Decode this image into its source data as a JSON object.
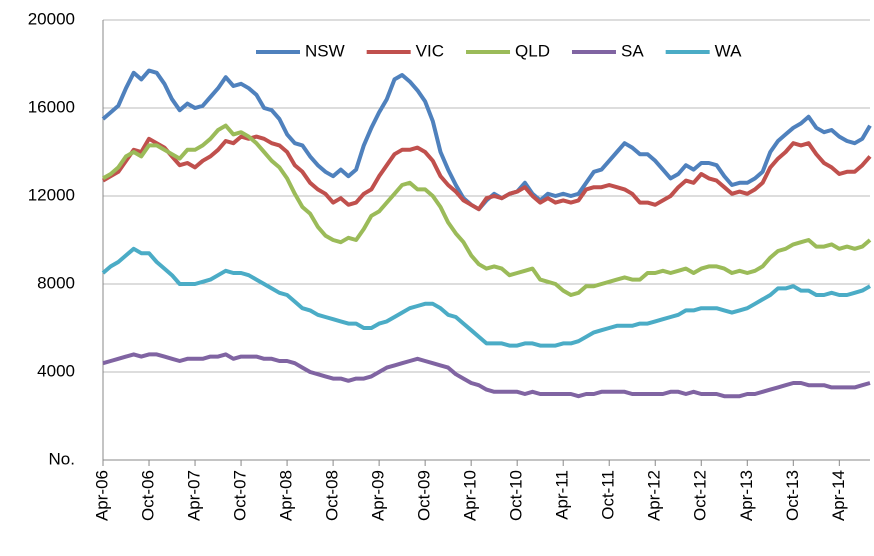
{
  "chart_data": {
    "type": "line",
    "y_label": "No.",
    "categories": [
      "Apr-06",
      null,
      null,
      null,
      null,
      null,
      "Oct-06",
      null,
      null,
      null,
      null,
      null,
      "Apr-07",
      null,
      null,
      null,
      null,
      null,
      "Oct-07",
      null,
      null,
      null,
      null,
      null,
      "Apr-08",
      null,
      null,
      null,
      null,
      null,
      "Oct-08",
      null,
      null,
      null,
      null,
      null,
      "Apr-09",
      null,
      null,
      null,
      null,
      null,
      "Oct-09",
      null,
      null,
      null,
      null,
      null,
      "Apr-10",
      null,
      null,
      null,
      null,
      null,
      "Oct-10",
      null,
      null,
      null,
      null,
      null,
      "Apr-11",
      null,
      null,
      null,
      null,
      null,
      "Oct-11",
      null,
      null,
      null,
      null,
      null,
      "Apr-12",
      null,
      null,
      null,
      null,
      null,
      "Oct-12",
      null,
      null,
      null,
      null,
      null,
      "Apr-13",
      null,
      null,
      null,
      null,
      null,
      "Oct-13",
      null,
      null,
      null,
      null,
      null,
      "Apr-14",
      null,
      null,
      null,
      null
    ],
    "series": [
      {
        "name": "NSW",
        "color": "#4f81bd",
        "values": [
          15500,
          15800,
          16100,
          16900,
          17600,
          17300,
          17700,
          17600,
          17100,
          16400,
          15900,
          16200,
          16000,
          16100,
          16500,
          16900,
          17400,
          17000,
          17100,
          16900,
          16600,
          16000,
          15900,
          15500,
          14800,
          14400,
          14300,
          13800,
          13400,
          13100,
          12900,
          13200,
          12900,
          13200,
          14300,
          15100,
          15800,
          16400,
          17300,
          17500,
          17200,
          16800,
          16300,
          15400,
          14000,
          13200,
          12500,
          11900,
          11600,
          11400,
          11800,
          12100,
          11900,
          12100,
          12200,
          12600,
          12100,
          11800,
          12100,
          12000,
          12100,
          12000,
          12100,
          12600,
          13100,
          13200,
          13600,
          14000,
          14400,
          14200,
          13900,
          13900,
          13600,
          13200,
          12800,
          13000,
          13400,
          13200,
          13500,
          13500,
          13400,
          12900,
          12500,
          12600,
          12600,
          12800,
          13100,
          14000,
          14500,
          14800,
          15100,
          15300,
          15600,
          15100,
          14900,
          15000,
          14700,
          14500,
          14400,
          14600,
          15200
        ]
      },
      {
        "name": "VIC",
        "color": "#c0504d",
        "values": [
          12700,
          12900,
          13100,
          13600,
          14100,
          14000,
          14600,
          14400,
          14200,
          13800,
          13400,
          13500,
          13300,
          13600,
          13800,
          14100,
          14500,
          14400,
          14700,
          14600,
          14700,
          14600,
          14400,
          14300,
          14000,
          13400,
          13100,
          12600,
          12300,
          12100,
          11700,
          11900,
          11600,
          11700,
          12100,
          12300,
          12900,
          13400,
          13900,
          14100,
          14100,
          14200,
          14000,
          13600,
          12900,
          12500,
          12200,
          11800,
          11600,
          11400,
          11900,
          12000,
          11900,
          12100,
          12200,
          12400,
          12000,
          11700,
          11900,
          11700,
          11800,
          11700,
          11800,
          12300,
          12400,
          12400,
          12500,
          12400,
          12300,
          12100,
          11700,
          11700,
          11600,
          11800,
          12000,
          12400,
          12700,
          12600,
          13000,
          12800,
          12700,
          12400,
          12100,
          12200,
          12100,
          12300,
          12600,
          13300,
          13700,
          14000,
          14400,
          14300,
          14400,
          13900,
          13500,
          13300,
          13000,
          13100,
          13100,
          13400,
          13800
        ]
      },
      {
        "name": "QLD",
        "color": "#9bbb59",
        "values": [
          12800,
          13000,
          13300,
          13800,
          14000,
          13800,
          14300,
          14300,
          14100,
          13900,
          13700,
          14100,
          14100,
          14300,
          14600,
          15000,
          15200,
          14800,
          14900,
          14700,
          14400,
          14000,
          13600,
          13300,
          12800,
          12100,
          11500,
          11200,
          10600,
          10200,
          10000,
          9900,
          10100,
          10000,
          10500,
          11100,
          11300,
          11700,
          12100,
          12500,
          12600,
          12300,
          12300,
          12000,
          11500,
          10800,
          10300,
          9900,
          9300,
          8900,
          8700,
          8800,
          8700,
          8400,
          8500,
          8600,
          8700,
          8200,
          8100,
          8000,
          7700,
          7500,
          7600,
          7900,
          7900,
          8000,
          8100,
          8200,
          8300,
          8200,
          8200,
          8500,
          8500,
          8600,
          8500,
          8600,
          8700,
          8500,
          8700,
          8800,
          8800,
          8700,
          8500,
          8600,
          8500,
          8600,
          8800,
          9200,
          9500,
          9600,
          9800,
          9900,
          10000,
          9700,
          9700,
          9800,
          9600,
          9700,
          9600,
          9700,
          10000
        ]
      },
      {
        "name": "SA",
        "color": "#8064a2",
        "values": [
          4400,
          4500,
          4600,
          4700,
          4800,
          4700,
          4800,
          4800,
          4700,
          4600,
          4500,
          4600,
          4600,
          4600,
          4700,
          4700,
          4800,
          4600,
          4700,
          4700,
          4700,
          4600,
          4600,
          4500,
          4500,
          4400,
          4200,
          4000,
          3900,
          3800,
          3700,
          3700,
          3600,
          3700,
          3700,
          3800,
          4000,
          4200,
          4300,
          4400,
          4500,
          4600,
          4500,
          4400,
          4300,
          4200,
          3900,
          3700,
          3500,
          3400,
          3200,
          3100,
          3100,
          3100,
          3100,
          3000,
          3100,
          3000,
          3000,
          3000,
          3000,
          3000,
          2900,
          3000,
          3000,
          3100,
          3100,
          3100,
          3100,
          3000,
          3000,
          3000,
          3000,
          3000,
          3100,
          3100,
          3000,
          3100,
          3000,
          3000,
          3000,
          2900,
          2900,
          2900,
          3000,
          3000,
          3100,
          3200,
          3300,
          3400,
          3500,
          3500,
          3400,
          3400,
          3400,
          3300,
          3300,
          3300,
          3300,
          3400,
          3500
        ]
      },
      {
        "name": "WA",
        "color": "#4bacc6",
        "values": [
          8500,
          8800,
          9000,
          9300,
          9600,
          9400,
          9400,
          9000,
          8700,
          8400,
          8000,
          8000,
          8000,
          8100,
          8200,
          8400,
          8600,
          8500,
          8500,
          8400,
          8200,
          8000,
          7800,
          7600,
          7500,
          7200,
          6900,
          6800,
          6600,
          6500,
          6400,
          6300,
          6200,
          6200,
          6000,
          6000,
          6200,
          6300,
          6500,
          6700,
          6900,
          7000,
          7100,
          7100,
          6900,
          6600,
          6500,
          6200,
          5900,
          5600,
          5300,
          5300,
          5300,
          5200,
          5200,
          5300,
          5300,
          5200,
          5200,
          5200,
          5300,
          5300,
          5400,
          5600,
          5800,
          5900,
          6000,
          6100,
          6100,
          6100,
          6200,
          6200,
          6300,
          6400,
          6500,
          6600,
          6800,
          6800,
          6900,
          6900,
          6900,
          6800,
          6700,
          6800,
          6900,
          7100,
          7300,
          7500,
          7800,
          7800,
          7900,
          7700,
          7700,
          7500,
          7500,
          7600,
          7500,
          7500,
          7600,
          7700,
          7900
        ]
      }
    ],
    "ylim": [
      0,
      20000
    ],
    "yticks": [
      {
        "value": 0,
        "label": "No."
      },
      4000,
      8000,
      12000,
      16000,
      20000
    ],
    "grid": true,
    "legend": "top"
  }
}
